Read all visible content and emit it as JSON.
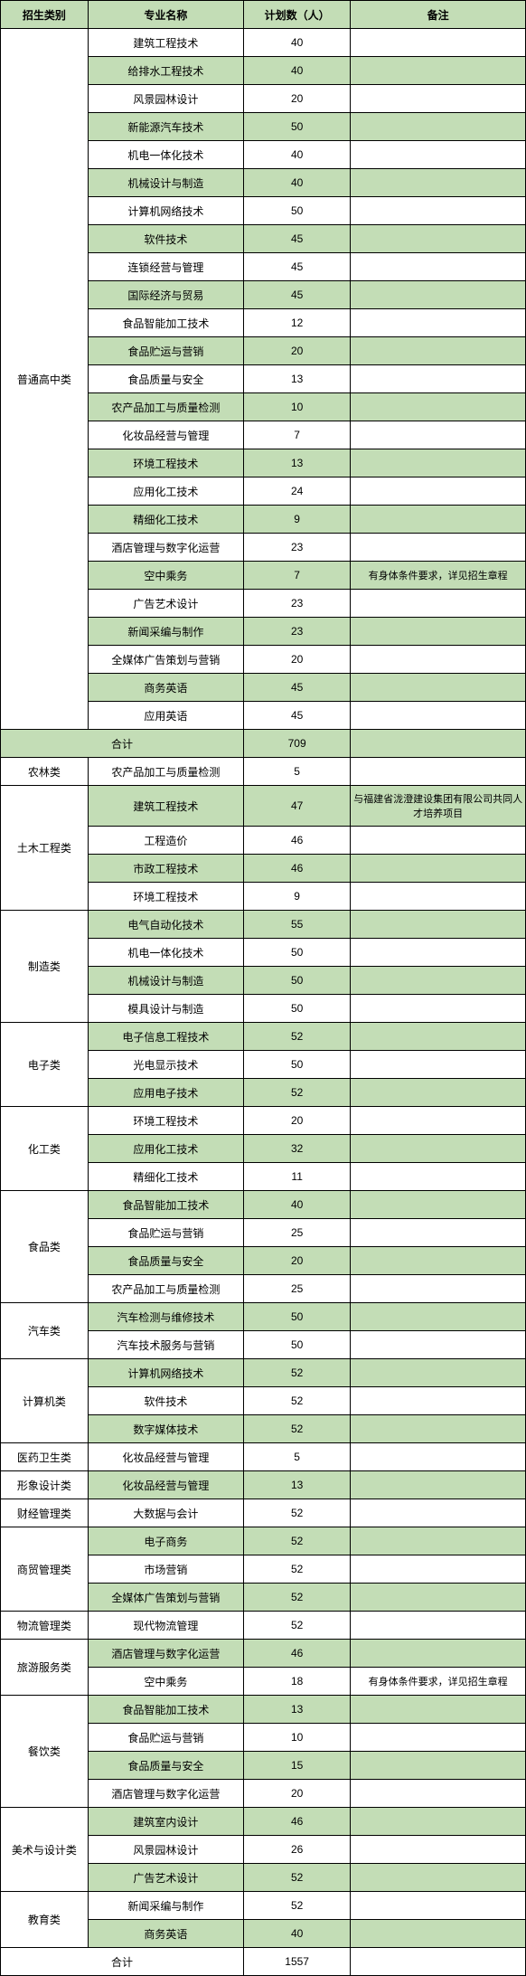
{
  "headers": {
    "category": "招生类别",
    "major": "专业名称",
    "count": "计划数（人）",
    "note": "备注"
  },
  "subtotal_label": "合计",
  "colors": {
    "alt_row": "#c3ddb6",
    "border": "#000000",
    "background": "#ffffff"
  },
  "sections": [
    {
      "category": "普通高中类",
      "rows": [
        {
          "major": "建筑工程技术",
          "count": 40,
          "note": "",
          "alt": false
        },
        {
          "major": "给排水工程技术",
          "count": 40,
          "note": "",
          "alt": true
        },
        {
          "major": "风景园林设计",
          "count": 20,
          "note": "",
          "alt": false
        },
        {
          "major": "新能源汽车技术",
          "count": 50,
          "note": "",
          "alt": true
        },
        {
          "major": "机电一体化技术",
          "count": 40,
          "note": "",
          "alt": false
        },
        {
          "major": "机械设计与制造",
          "count": 40,
          "note": "",
          "alt": true
        },
        {
          "major": "计算机网络技术",
          "count": 50,
          "note": "",
          "alt": false
        },
        {
          "major": "软件技术",
          "count": 45,
          "note": "",
          "alt": true
        },
        {
          "major": "连锁经营与管理",
          "count": 45,
          "note": "",
          "alt": false
        },
        {
          "major": "国际经济与贸易",
          "count": 45,
          "note": "",
          "alt": true
        },
        {
          "major": "食品智能加工技术",
          "count": 12,
          "note": "",
          "alt": false
        },
        {
          "major": "食品贮运与营销",
          "count": 20,
          "note": "",
          "alt": true
        },
        {
          "major": "食品质量与安全",
          "count": 13,
          "note": "",
          "alt": false
        },
        {
          "major": "农产品加工与质量检测",
          "count": 10,
          "note": "",
          "alt": true
        },
        {
          "major": "化妆品经营与管理",
          "count": 7,
          "note": "",
          "alt": false
        },
        {
          "major": "环境工程技术",
          "count": 13,
          "note": "",
          "alt": true
        },
        {
          "major": "应用化工技术",
          "count": 24,
          "note": "",
          "alt": false
        },
        {
          "major": "精细化工技术",
          "count": 9,
          "note": "",
          "alt": true
        },
        {
          "major": "酒店管理与数字化运营",
          "count": 23,
          "note": "",
          "alt": false
        },
        {
          "major": "空中乘务",
          "count": 7,
          "note": "有身体条件要求，详见招生章程",
          "alt": true
        },
        {
          "major": "广告艺术设计",
          "count": 23,
          "note": "",
          "alt": false
        },
        {
          "major": "新闻采编与制作",
          "count": 23,
          "note": "",
          "alt": true
        },
        {
          "major": "全媒体广告策划与营销",
          "count": 20,
          "note": "",
          "alt": false
        },
        {
          "major": "商务英语",
          "count": 45,
          "note": "",
          "alt": true
        },
        {
          "major": "应用英语",
          "count": 45,
          "note": "",
          "alt": false
        }
      ],
      "subtotal": 709,
      "subtotal_alt": true
    },
    {
      "category": "农林类",
      "rows": [
        {
          "major": "农产品加工与质量检测",
          "count": 5,
          "note": "",
          "alt": false
        }
      ]
    },
    {
      "category": "土木工程类",
      "rows": [
        {
          "major": "建筑工程技术",
          "count": 47,
          "note": "与福建省泷澄建设集团有限公司共同人才培养项目",
          "alt": true
        },
        {
          "major": "工程造价",
          "count": 46,
          "note": "",
          "alt": false
        },
        {
          "major": "市政工程技术",
          "count": 46,
          "note": "",
          "alt": true
        },
        {
          "major": "环境工程技术",
          "count": 9,
          "note": "",
          "alt": false
        }
      ]
    },
    {
      "category": "制造类",
      "rows": [
        {
          "major": "电气自动化技术",
          "count": 55,
          "note": "",
          "alt": true
        },
        {
          "major": "机电一体化技术",
          "count": 50,
          "note": "",
          "alt": false
        },
        {
          "major": "机械设计与制造",
          "count": 50,
          "note": "",
          "alt": true
        },
        {
          "major": "模具设计与制造",
          "count": 50,
          "note": "",
          "alt": false
        }
      ]
    },
    {
      "category": "电子类",
      "rows": [
        {
          "major": "电子信息工程技术",
          "count": 52,
          "note": "",
          "alt": true
        },
        {
          "major": "光电显示技术",
          "count": 50,
          "note": "",
          "alt": false
        },
        {
          "major": "应用电子技术",
          "count": 52,
          "note": "",
          "alt": true
        }
      ]
    },
    {
      "category": "化工类",
      "rows": [
        {
          "major": "环境工程技术",
          "count": 20,
          "note": "",
          "alt": false
        },
        {
          "major": "应用化工技术",
          "count": 32,
          "note": "",
          "alt": true
        },
        {
          "major": "精细化工技术",
          "count": 11,
          "note": "",
          "alt": false
        }
      ]
    },
    {
      "category": "食品类",
      "rows": [
        {
          "major": "食品智能加工技术",
          "count": 40,
          "note": "",
          "alt": true
        },
        {
          "major": "食品贮运与营销",
          "count": 25,
          "note": "",
          "alt": false
        },
        {
          "major": "食品质量与安全",
          "count": 20,
          "note": "",
          "alt": true
        },
        {
          "major": "农产品加工与质量检测",
          "count": 25,
          "note": "",
          "alt": false
        }
      ]
    },
    {
      "category": "汽车类",
      "rows": [
        {
          "major": "汽车检测与维修技术",
          "count": 50,
          "note": "",
          "alt": true
        },
        {
          "major": "汽车技术服务与营销",
          "count": 50,
          "note": "",
          "alt": false
        }
      ]
    },
    {
      "category": "计算机类",
      "rows": [
        {
          "major": "计算机网络技术",
          "count": 52,
          "note": "",
          "alt": true
        },
        {
          "major": "软件技术",
          "count": 52,
          "note": "",
          "alt": false
        },
        {
          "major": "数字媒体技术",
          "count": 52,
          "note": "",
          "alt": true
        }
      ]
    },
    {
      "category": "医药卫生类",
      "rows": [
        {
          "major": "化妆品经营与管理",
          "count": 5,
          "note": "",
          "alt": false
        }
      ]
    },
    {
      "category": "形象设计类",
      "rows": [
        {
          "major": "化妆品经营与管理",
          "count": 13,
          "note": "",
          "alt": true
        }
      ]
    },
    {
      "category": "财经管理类",
      "rows": [
        {
          "major": "大数据与会计",
          "count": 52,
          "note": "",
          "alt": false
        }
      ]
    },
    {
      "category": "商贸管理类",
      "rows": [
        {
          "major": "电子商务",
          "count": 52,
          "note": "",
          "alt": true
        },
        {
          "major": "市场营销",
          "count": 52,
          "note": "",
          "alt": false
        },
        {
          "major": "全媒体广告策划与营销",
          "count": 52,
          "note": "",
          "alt": true
        }
      ]
    },
    {
      "category": "物流管理类",
      "rows": [
        {
          "major": "现代物流管理",
          "count": 52,
          "note": "",
          "alt": false
        }
      ]
    },
    {
      "category": "旅游服务类",
      "rows": [
        {
          "major": "酒店管理与数字化运营",
          "count": 46,
          "note": "",
          "alt": true
        },
        {
          "major": "空中乘务",
          "count": 18,
          "note": "有身体条件要求，详见招生章程",
          "alt": false
        }
      ]
    },
    {
      "category": "餐饮类",
      "rows": [
        {
          "major": "食品智能加工技术",
          "count": 13,
          "note": "",
          "alt": true
        },
        {
          "major": "食品贮运与营销",
          "count": 10,
          "note": "",
          "alt": false
        },
        {
          "major": "食品质量与安全",
          "count": 15,
          "note": "",
          "alt": true
        },
        {
          "major": "酒店管理与数字化运营",
          "count": 20,
          "note": "",
          "alt": false
        }
      ]
    },
    {
      "category": "美术与设计类",
      "rows": [
        {
          "major": "建筑室内设计",
          "count": 46,
          "note": "",
          "alt": true
        },
        {
          "major": "风景园林设计",
          "count": 26,
          "note": "",
          "alt": false
        },
        {
          "major": "广告艺术设计",
          "count": 52,
          "note": "",
          "alt": true
        }
      ]
    },
    {
      "category": "教育类",
      "rows": [
        {
          "major": "新闻采编与制作",
          "count": 52,
          "note": "",
          "alt": false
        },
        {
          "major": "商务英语",
          "count": 40,
          "note": "",
          "alt": true
        }
      ],
      "subtotal": 1557,
      "subtotal_alt": false
    }
  ]
}
